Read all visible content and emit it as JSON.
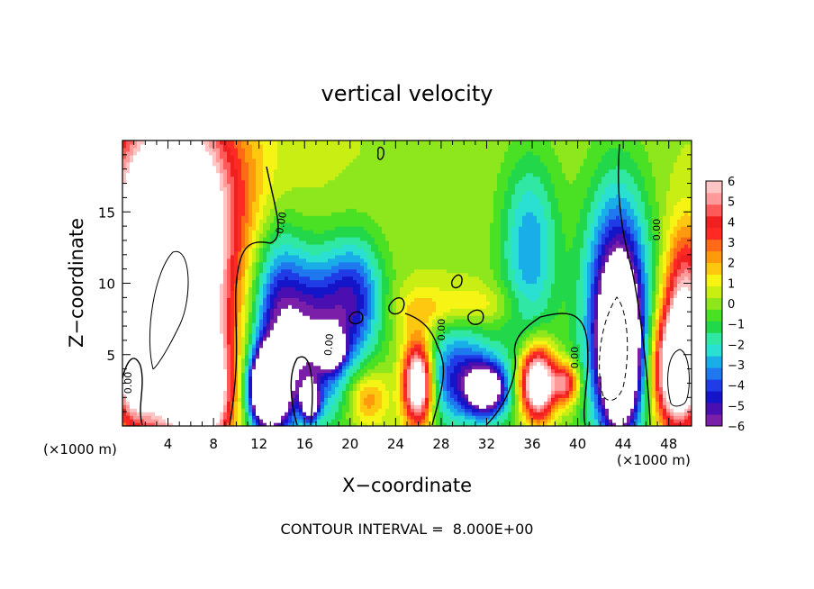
{
  "chart_data": {
    "type": "heatmap",
    "title": "vertical velocity",
    "xlabel": "X−coordinate",
    "ylabel": "Z−coordinate",
    "x_unit_left": "(×1000 m)",
    "x_unit_right": "(×1000 m)",
    "xlim": [
      0,
      50
    ],
    "ylim": [
      0,
      20
    ],
    "x_ticks": [
      4,
      8,
      12,
      16,
      20,
      24,
      28,
      32,
      36,
      40,
      44,
      48
    ],
    "y_ticks": [
      5,
      10,
      15
    ],
    "footer": "CONTOUR INTERVAL =  8.000E+00",
    "contour_labels": [
      "0.00",
      "0.00",
      "0.00",
      "0.00",
      "0.00",
      "0.00"
    ],
    "colorbar": {
      "min": -6,
      "max": 6,
      "ticks": [
        "6",
        "5",
        "4",
        "3",
        "2",
        "1",
        "0",
        "−1",
        "−2",
        "−3",
        "−4",
        "−5",
        "−6"
      ],
      "colors": [
        "#7a1fa8",
        "#4a0fb0",
        "#1414c8",
        "#1f3ce6",
        "#1f78ee",
        "#1aaee8",
        "#2ae0d2",
        "#30e8a4",
        "#22d84a",
        "#4ae024",
        "#8ee61c",
        "#c8ee14",
        "#f6f414",
        "#ffc810",
        "#ff9a0c",
        "#ff6a18",
        "#ff2a24",
        "#ee2020",
        "#ff5a5a",
        "#ff9a9a",
        "#ffc4c4"
      ]
    },
    "features": [
      {
        "x": 4.5,
        "z": 11,
        "sx": 3.5,
        "sz": 7.5,
        "w": 10
      },
      {
        "x": 4.2,
        "z": 8.5,
        "sx": 1.9,
        "sz": 4.5,
        "w": 9
      },
      {
        "x": 7.2,
        "z": 2.5,
        "sx": 1.4,
        "sz": 2.5,
        "w": 8
      },
      {
        "x": 0.8,
        "z": 9,
        "sx": 1.2,
        "sz": 3.5,
        "w": 5
      },
      {
        "x": 1.0,
        "z": 3,
        "sx": 1.0,
        "sz": 1.8,
        "w": 3.5
      },
      {
        "x": 4.5,
        "z": 17,
        "sx": 6,
        "sz": 4,
        "w": 2.5
      },
      {
        "x": 12.8,
        "z": 2.6,
        "sx": 1.1,
        "sz": 1.8,
        "w": -12
      },
      {
        "x": 13.5,
        "z": 7,
        "sx": 1.7,
        "sz": 5,
        "w": -4.5
      },
      {
        "x": 16.8,
        "z": 6,
        "sx": 2.3,
        "sz": 4,
        "w": -5.5
      },
      {
        "x": 18.3,
        "z": 5.5,
        "sx": 0.7,
        "sz": 0.8,
        "w": -10
      },
      {
        "x": 16.5,
        "z": 1.8,
        "sx": 0.5,
        "sz": 0.8,
        "w": -8
      },
      {
        "x": 20.5,
        "z": 9,
        "sx": 1.8,
        "sz": 3,
        "w": -4
      },
      {
        "x": 21.5,
        "z": 2.0,
        "sx": 1.2,
        "sz": 1.3,
        "w": 2.5
      },
      {
        "x": 26.0,
        "z": 3.0,
        "sx": 0.9,
        "sz": 2.0,
        "w": 9
      },
      {
        "x": 29.5,
        "z": 3.5,
        "sx": 2.2,
        "sz": 2.5,
        "w": -4.5
      },
      {
        "x": 32.0,
        "z": 2.6,
        "sx": 1.2,
        "sz": 1.2,
        "w": -7
      },
      {
        "x": 35.8,
        "z": 12.5,
        "sx": 1.8,
        "sz": 4.5,
        "w": -3.3
      },
      {
        "x": 35.5,
        "z": 2.5,
        "sx": 2.8,
        "sz": 3.5,
        "w": -1.2
      },
      {
        "x": 36.5,
        "z": 3.0,
        "sx": 1.1,
        "sz": 1.8,
        "w": 10
      },
      {
        "x": 39.0,
        "z": 3.0,
        "sx": 0.8,
        "sz": 1.0,
        "w": 5
      },
      {
        "x": 43.5,
        "z": 8.0,
        "sx": 2.0,
        "sz": 6,
        "w": -7
      },
      {
        "x": 43.7,
        "z": 5.0,
        "sx": 1.1,
        "sz": 3.5,
        "w": -9
      },
      {
        "x": 48.8,
        "z": 4.0,
        "sx": 1.4,
        "sz": 2.8,
        "w": 10
      },
      {
        "x": 49.5,
        "z": 9.0,
        "sx": 1.3,
        "sz": 3.5,
        "w": 5
      },
      {
        "x": 30.5,
        "z": 8.5,
        "sx": 3,
        "sz": 1.0,
        "w": 1.5
      },
      {
        "x": 26.0,
        "z": 8.0,
        "sx": 1.5,
        "sz": 1.2,
        "w": 1.2
      }
    ]
  }
}
